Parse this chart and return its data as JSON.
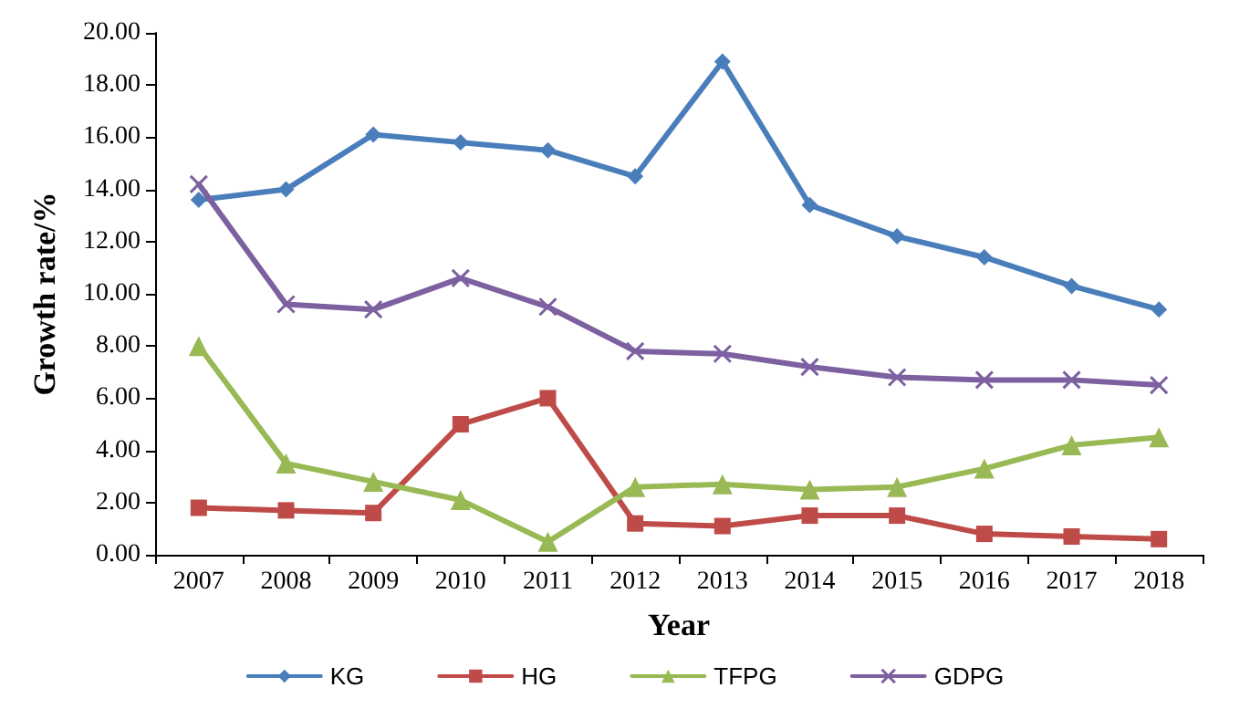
{
  "chart_data": {
    "type": "line",
    "xlabel": "Year",
    "ylabel": "Growth rate/%",
    "categories": [
      "2007",
      "2008",
      "2009",
      "2010",
      "2011",
      "2012",
      "2013",
      "2014",
      "2015",
      "2016",
      "2017",
      "2018"
    ],
    "series": [
      {
        "name": "KG",
        "color": "#4a7ebb",
        "marker": "diamond",
        "values": [
          13.6,
          14.0,
          16.1,
          15.8,
          15.5,
          14.5,
          18.9,
          13.4,
          12.2,
          11.4,
          10.3,
          9.4
        ]
      },
      {
        "name": "HG",
        "color": "#be4b48",
        "marker": "square",
        "values": [
          1.8,
          1.7,
          1.6,
          5.0,
          6.0,
          1.2,
          1.1,
          1.5,
          1.5,
          0.8,
          0.7,
          0.6
        ]
      },
      {
        "name": "TFPG",
        "color": "#98b954",
        "marker": "triangle",
        "values": [
          8.0,
          3.5,
          2.8,
          2.1,
          0.5,
          2.6,
          2.7,
          2.5,
          2.6,
          3.3,
          4.2,
          4.5
        ]
      },
      {
        "name": "GDPG",
        "color": "#7d60a0",
        "marker": "cross",
        "values": [
          14.2,
          9.6,
          9.4,
          10.6,
          9.5,
          7.8,
          7.7,
          7.2,
          6.8,
          6.7,
          6.7,
          6.5
        ]
      }
    ],
    "ylim": [
      0,
      20
    ],
    "yticks": [
      {
        "value": 0,
        "label": "0.00"
      },
      {
        "value": 2,
        "label": "2.00"
      },
      {
        "value": 4,
        "label": "4.00"
      },
      {
        "value": 6,
        "label": "6.00"
      },
      {
        "value": 8,
        "label": "8.00"
      },
      {
        "value": 10,
        "label": "10.00"
      },
      {
        "value": 12,
        "label": "12.00"
      },
      {
        "value": 14,
        "label": "14.00"
      },
      {
        "value": 16,
        "label": "16.00"
      },
      {
        "value": 18,
        "label": "18.00"
      },
      {
        "value": 20,
        "label": "20.00"
      }
    ],
    "grid": false,
    "legend": "bottom",
    "line_style": "solid"
  }
}
